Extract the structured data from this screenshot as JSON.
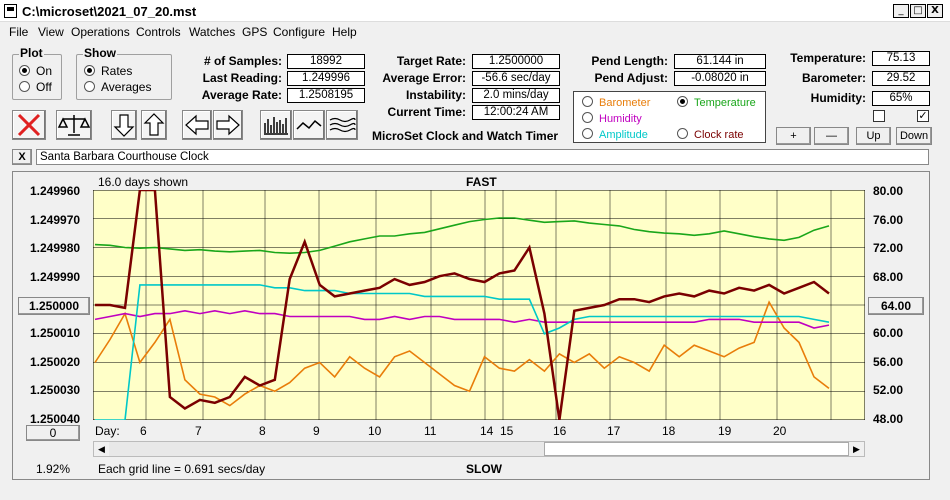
{
  "window": {
    "title": "C:\\microset\\2021_07_20.mst",
    "minimize": "_",
    "maximize": "□",
    "close": "X"
  },
  "menu": [
    "File",
    "View",
    "Operations",
    "Controls",
    "Watches",
    "GPS",
    "Configure",
    "Help"
  ],
  "plot_group": {
    "title": "Plot",
    "options": [
      {
        "label": "On",
        "selected": true
      },
      {
        "label": "Off",
        "selected": false
      }
    ]
  },
  "show_group": {
    "title": "Show",
    "options": [
      {
        "label": "Rates",
        "selected": true
      },
      {
        "label": "Averages",
        "selected": false
      }
    ]
  },
  "stats": {
    "samples_label": "# of Samples:",
    "samples": "18992",
    "last_label": "Last Reading:",
    "last": "1.249996",
    "avg_rate_label": "Average Rate:",
    "avg_rate": "1.2508195",
    "target_label": "Target Rate:",
    "target": "1.2500000",
    "avg_err_label": "Average Error:",
    "avg_err": "-56.6 sec/day",
    "instab_label": "Instability:",
    "instab": "2.0 mins/day",
    "time_label": "Current Time:",
    "time": "12:00:24 AM",
    "pend_len_label": "Pend Length:",
    "pend_len": "61.144 in",
    "pend_adj_label": "Pend Adjust:",
    "pend_adj": "-0.08020 in",
    "temp_label": "Temperature:",
    "temp": "75.13",
    "baro_label": "Barometer:",
    "baro": "29.52",
    "hum_label": "Humidity:",
    "hum": "65%"
  },
  "app_caption": "MicroSet Clock and Watch Timer",
  "sensors": [
    {
      "label": "Barometer",
      "color": "#e87d0a",
      "selected": false
    },
    {
      "label": "Temperature",
      "color": "#1aa61a",
      "selected": true
    },
    {
      "label": "Humidity",
      "color": "#c000c0",
      "selected": false
    },
    {
      "label": "Amplitude",
      "color": "#00c8c8",
      "selected": false
    },
    {
      "label": "Clock rate",
      "color": "#7a0000",
      "selected": false
    }
  ],
  "sensor_buttons": [
    "+",
    "—",
    "Up",
    "Down"
  ],
  "checkbox_right": "✓",
  "clock_close": "X",
  "clock_name": "Santa Barbara Courthouse Clock",
  "plot": {
    "days_shown": "16.0 days shown",
    "top_label": "FAST",
    "bottom_label": "SLOW",
    "grid_note": "Each grid line = 0.691 secs/day",
    "percent": "1.92%",
    "left_button": "1.250000",
    "right_button": "64.00",
    "zero_button": "0",
    "day_label": "Day:"
  },
  "chart_data": {
    "type": "line",
    "left_ticks": [
      "1.249960",
      "1.249970",
      "1.249980",
      "1.249990",
      "",
      "1.250010",
      "1.250020",
      "1.250030",
      "1.250040"
    ],
    "right_ticks": [
      "80.00",
      "76.00",
      "72.00",
      "68.00",
      "",
      "60.00",
      "56.00",
      "52.00",
      "48.00"
    ],
    "x_ticks": [
      "6",
      "7",
      "8",
      "9",
      "10",
      "11",
      "14",
      "15",
      "16",
      "17",
      "18",
      "19",
      "20"
    ],
    "series": [
      {
        "color": "#7a0000",
        "values": [
          1.25,
          1.25,
          1.250001,
          1.24996,
          1.24996,
          1.250032,
          1.250036,
          1.250033,
          1.250034,
          1.250032,
          1.250025,
          1.250028,
          1.250026,
          1.249991,
          1.249978,
          1.249993,
          1.249997,
          1.249996,
          1.249995,
          1.249994,
          1.249991,
          1.249993,
          1.249992,
          1.24999,
          1.249989,
          1.249991,
          1.249992,
          1.249989,
          1.249988,
          1.24998,
          1.250003,
          1.25004,
          1.250002,
          1.250001,
          1.25,
          1.249998,
          1.249998,
          1.249999,
          1.249997,
          1.249996,
          1.249997,
          1.249995,
          1.249996,
          1.249994,
          1.249995,
          1.249993,
          1.249996,
          1.249994,
          1.249992,
          1.249996
        ]
      },
      {
        "color": "#1aa61a",
        "values": [
          72.4,
          72.3,
          72.0,
          71.9,
          72.0,
          71.8,
          71.6,
          71.7,
          71.5,
          71.4,
          71.5,
          71.6,
          71.3,
          71.2,
          71.3,
          71.6,
          72.2,
          72.8,
          73.2,
          73.6,
          73.6,
          73.9,
          74.1,
          74.6,
          75.1,
          75.6,
          75.9,
          76.1,
          76.1,
          75.8,
          75.5,
          75.6,
          75.7,
          75.4,
          75.2,
          75.0,
          74.5,
          74.2,
          74.0,
          73.9,
          73.7,
          73.9,
          74.3,
          73.9,
          73.5,
          73.2,
          73.0,
          73.4,
          74.4,
          75.0
        ]
      },
      {
        "color": "#e87d0a",
        "values": [
          1.25002,
          1.250012,
          1.250003,
          1.25002,
          1.250013,
          1.250005,
          1.250026,
          1.250031,
          1.250032,
          1.250035,
          1.250031,
          1.250028,
          1.25003,
          1.250027,
          1.250022,
          1.25002,
          1.250025,
          1.250018,
          1.250022,
          1.250025,
          1.250018,
          1.250016,
          1.25002,
          1.250024,
          1.250028,
          1.25003,
          1.250018,
          1.250022,
          1.250023,
          1.250019,
          1.250023,
          1.250017,
          1.25002,
          1.250017,
          1.250022,
          1.250018,
          1.25002,
          1.250023,
          1.250014,
          1.250018,
          1.250014,
          1.250016,
          1.250018,
          1.250015,
          1.250013,
          1.249999,
          1.250008,
          1.250013,
          1.250025,
          1.250029
        ]
      },
      {
        "color": "#00c8c8",
        "values": [
          1.250041,
          1.250041,
          1.25004,
          1.249993,
          1.249993,
          1.249993,
          1.249993,
          1.249993,
          1.249993,
          1.249993,
          1.249993,
          1.249993,
          1.249994,
          1.249994,
          1.249995,
          1.249995,
          1.249995,
          1.249996,
          1.249996,
          1.249996,
          1.249996,
          1.249996,
          1.249997,
          1.249997,
          1.249997,
          1.249997,
          1.249997,
          1.249998,
          1.249998,
          1.249998,
          1.25001,
          1.250008,
          1.250005,
          1.250004,
          1.250004,
          1.250004,
          1.250004,
          1.250004,
          1.250004,
          1.250004,
          1.250004,
          1.250004,
          1.250004,
          1.250004,
          1.250004,
          1.250004,
          1.250004,
          1.250004,
          1.250005,
          1.250006
        ]
      },
      {
        "color": "#c000c0",
        "values": [
          1.250005,
          1.250004,
          1.250003,
          1.250004,
          1.250003,
          1.250003,
          1.250002,
          1.250003,
          1.250002,
          1.250003,
          1.250002,
          1.250003,
          1.250003,
          1.250004,
          1.250004,
          1.250004,
          1.250004,
          1.250004,
          1.250005,
          1.250005,
          1.250004,
          1.250005,
          1.250004,
          1.250004,
          1.250005,
          1.250005,
          1.250005,
          1.250005,
          1.250006,
          1.250005,
          1.250006,
          1.250006,
          1.250006,
          1.250006,
          1.250006,
          1.250006,
          1.250006,
          1.250006,
          1.250006,
          1.250006,
          1.250006,
          1.250005,
          1.250005,
          1.250005,
          1.250006,
          1.250006,
          1.250006,
          1.250006,
          1.250008,
          1.250007
        ]
      }
    ]
  }
}
